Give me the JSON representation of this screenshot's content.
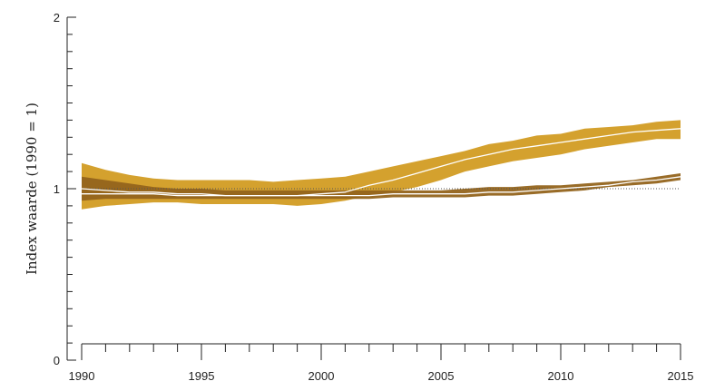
{
  "chart_data": {
    "type": "area",
    "ylabel": "Index waarde (1990 = 1)",
    "xlabel": "",
    "xlim": [
      1990,
      2015
    ],
    "ylim": [
      0,
      2
    ],
    "x_ticks": [
      "1990",
      "1995",
      "2000",
      "2005",
      "2010",
      "2015"
    ],
    "y_ticks": [
      "0",
      "1",
      "2"
    ],
    "reference_line": 1,
    "grid": false,
    "colors": {
      "band_light": "#D4A12E",
      "band_dark": "#94641C",
      "center_line": "#ffffff",
      "reference": "#555555",
      "axis": "#222222"
    },
    "x": [
      1990,
      1991,
      1992,
      1993,
      1994,
      1995,
      1996,
      1997,
      1998,
      1999,
      2000,
      2001,
      2002,
      2003,
      2004,
      2005,
      2006,
      2007,
      2008,
      2009,
      2010,
      2011,
      2012,
      2013,
      2014,
      2015
    ],
    "series": [
      {
        "color": "band_light",
        "lower": [
          0.88,
          0.9,
          0.91,
          0.92,
          0.92,
          0.91,
          0.91,
          0.91,
          0.91,
          0.9,
          0.91,
          0.93,
          0.96,
          0.98,
          1.01,
          1.05,
          1.1,
          1.13,
          1.16,
          1.18,
          1.2,
          1.23,
          1.25,
          1.27,
          1.29,
          1.29
        ],
        "center": [
          1.0,
          0.99,
          0.98,
          0.98,
          0.97,
          0.97,
          0.96,
          0.96,
          0.96,
          0.96,
          0.97,
          0.98,
          1.02,
          1.05,
          1.09,
          1.13,
          1.17,
          1.2,
          1.23,
          1.25,
          1.27,
          1.29,
          1.31,
          1.33,
          1.34,
          1.35
        ],
        "upper": [
          1.15,
          1.11,
          1.08,
          1.06,
          1.05,
          1.05,
          1.05,
          1.05,
          1.04,
          1.05,
          1.06,
          1.07,
          1.1,
          1.13,
          1.16,
          1.19,
          1.22,
          1.26,
          1.28,
          1.31,
          1.32,
          1.35,
          1.36,
          1.37,
          1.39,
          1.4
        ]
      },
      {
        "color": "band_dark",
        "lower": [
          0.93,
          0.94,
          0.94,
          0.94,
          0.94,
          0.94,
          0.94,
          0.94,
          0.94,
          0.94,
          0.94,
          0.94,
          0.94,
          0.95,
          0.95,
          0.95,
          0.95,
          0.96,
          0.96,
          0.97,
          0.98,
          0.99,
          1.01,
          1.02,
          1.03,
          1.05
        ],
        "center": [
          0.97,
          0.97,
          0.97,
          0.97,
          0.96,
          0.96,
          0.96,
          0.96,
          0.96,
          0.96,
          0.96,
          0.96,
          0.96,
          0.97,
          0.97,
          0.97,
          0.97,
          0.98,
          0.98,
          0.99,
          1.0,
          1.01,
          1.02,
          1.04,
          1.05,
          1.07
        ],
        "upper": [
          1.07,
          1.05,
          1.03,
          1.01,
          1.0,
          1.0,
          0.99,
          0.99,
          0.99,
          0.99,
          0.99,
          0.99,
          0.99,
          0.99,
          0.99,
          0.99,
          1.0,
          1.01,
          1.01,
          1.02,
          1.02,
          1.03,
          1.04,
          1.05,
          1.07,
          1.09
        ]
      }
    ]
  }
}
